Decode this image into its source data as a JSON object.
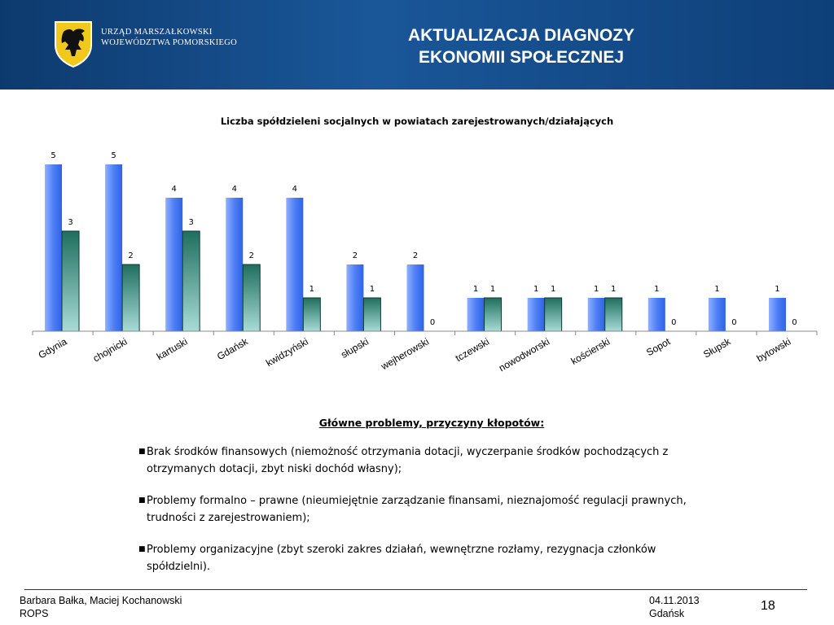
{
  "header": {
    "office_line1": "URZĄD MARSZAŁKOWSKI",
    "office_line2": "WOJEWÓDZTWA POMORSKIEGO",
    "title_line1": "AKTUALIZACJA DIAGNOZY",
    "title_line2": "EKONOMII SPOŁECZNEJ"
  },
  "colors": {
    "series1": "#4d7ff5",
    "series2": "#1e6b5c",
    "header": "#1a5799"
  },
  "chart_data": {
    "type": "bar",
    "title": "Liczba spółdzieleni socjalnych w powiatach zarejestrowanych/działających",
    "categories": [
      "Gdynia",
      "chojnicki",
      "kartuski",
      "Gdańsk",
      "kwidzyński",
      "słupski",
      "wejherowski",
      "tczewski",
      "nowodworski",
      "kościerski",
      "Sopot",
      "Słupsk",
      "bytowski"
    ],
    "series": [
      {
        "values": [
          5,
          5,
          4,
          4,
          4,
          2,
          2,
          1,
          1,
          1,
          1,
          1,
          1
        ]
      },
      {
        "values": [
          3,
          2,
          3,
          2,
          1,
          1,
          0,
          1,
          1,
          1,
          0,
          0,
          0
        ]
      }
    ],
    "ylim": [
      0,
      5
    ],
    "grid": false,
    "legend": "none"
  },
  "problems": {
    "heading": "Główne problemy, przyczyny kłopotów:",
    "items": [
      {
        "line1": "Brak środków finansowych  (niemożność otrzymania dotacji, wyczerpanie środków pochodzących z",
        "line2": "otrzymanych dotacji, zbyt niski dochód własny);"
      },
      {
        "line1": "Problemy formalno – prawne (nieumiejętnie zarządzanie finansami, nieznajomość regulacji prawnych,",
        "line2": "trudności z zarejestrowaniem);"
      },
      {
        "line1": "Problemy organizacyjne  (zbyt szeroki zakres działań, wewnętrzne rozłamy, rezygnacja członków",
        "line2": "spółdzielni)."
      }
    ]
  },
  "footer": {
    "authors": "Barbara Bałka, Maciej Kochanowski",
    "org": "ROPS",
    "date": "04.11.2013",
    "place": "Gdańsk",
    "page": "18"
  }
}
